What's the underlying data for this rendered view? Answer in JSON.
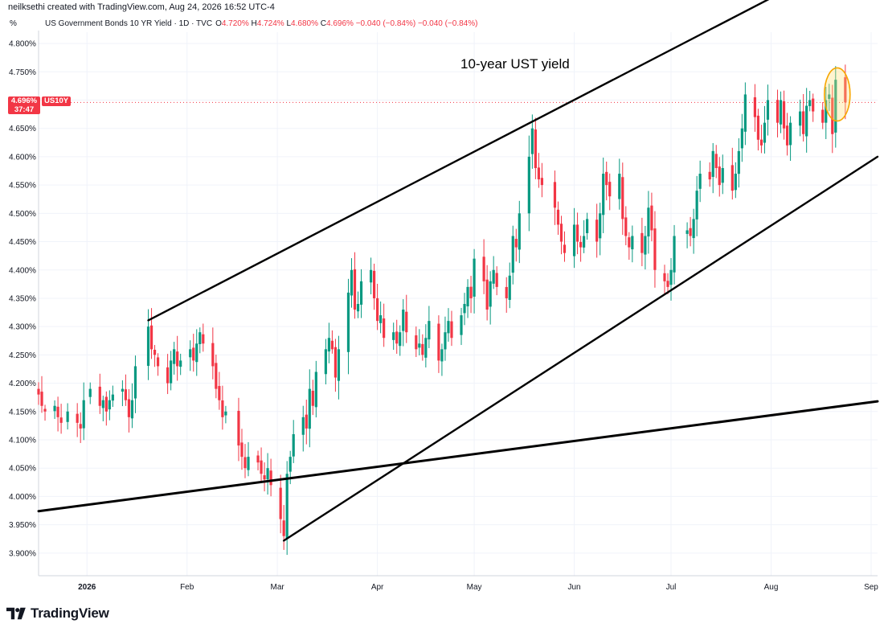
{
  "header": {
    "attribution": "neilksethi created with TradingView.com, Aug 24, 2026 16:52 UTC-4"
  },
  "legend": {
    "percent_toggle": "%",
    "title": "US Government Bonds 10 YR Yield · 1D · TVC",
    "o_label": "O",
    "o_value": "4.720%",
    "h_label": "H",
    "h_value": "4.724%",
    "l_label": "L",
    "l_value": "4.680%",
    "c_label": "C",
    "c_value": "4.696%",
    "change": "−0.040 (−0.84%)",
    "change2": "−0.040 (−0.84%)"
  },
  "price_badge": {
    "price": "4.696%",
    "countdown": "37:47",
    "symbol": "US10Y"
  },
  "annotation": "10-year UST yield",
  "footer": {
    "brand": "TradingView"
  },
  "colors": {
    "up": "#089981",
    "down": "#f23645",
    "grid": "#f0f3fa",
    "trendline": "#000000",
    "highlight": "#f7a600"
  },
  "chart_data": {
    "type": "candlestick",
    "ylim": [
      3.86,
      4.82
    ],
    "yticks": [
      {
        "value": 3.9,
        "label": "3.900%"
      },
      {
        "value": 3.95,
        "label": "3.950%"
      },
      {
        "value": 4.0,
        "label": "4.000%"
      },
      {
        "value": 4.05,
        "label": "4.050%"
      },
      {
        "value": 4.1,
        "label": "4.100%"
      },
      {
        "value": 4.15,
        "label": "4.150%"
      },
      {
        "value": 4.2,
        "label": "4.200%"
      },
      {
        "value": 4.25,
        "label": "4.250%"
      },
      {
        "value": 4.3,
        "label": "4.300%"
      },
      {
        "value": 4.35,
        "label": "4.350%"
      },
      {
        "value": 4.4,
        "label": "4.400%"
      },
      {
        "value": 4.45,
        "label": "4.450%"
      },
      {
        "value": 4.5,
        "label": "4.500%"
      },
      {
        "value": 4.55,
        "label": "4.550%"
      },
      {
        "value": 4.6,
        "label": "4.600%"
      },
      {
        "value": 4.65,
        "label": "4.650%"
      },
      {
        "value": 4.7,
        "label": "4.700%"
      },
      {
        "value": 4.75,
        "label": "4.750%"
      },
      {
        "value": 4.8,
        "label": "4.800%"
      }
    ],
    "xticks": [
      {
        "date": "2026-01-01",
        "label": "2026",
        "bold": true
      },
      {
        "date": "2026-02-01",
        "label": "Feb"
      },
      {
        "date": "2026-03-01",
        "label": "Mar"
      },
      {
        "date": "2026-04-01",
        "label": "Apr"
      },
      {
        "date": "2026-05-01",
        "label": "May"
      },
      {
        "date": "2026-06-01",
        "label": "Jun"
      },
      {
        "date": "2026-07-01",
        "label": "Jul"
      },
      {
        "date": "2026-08-01",
        "label": "Aug"
      },
      {
        "date": "2026-09-01",
        "label": "Sep"
      }
    ],
    "xrange": [
      "2025-12-17",
      "2026-09-03"
    ],
    "last_price": 4.696,
    "closes": [
      [
        "2025-12-17",
        4.18
      ],
      [
        "2025-12-18",
        4.16
      ],
      [
        "2025-12-19",
        4.15
      ],
      [
        "2025-12-22",
        4.16
      ],
      [
        "2025-12-23",
        4.14
      ],
      [
        "2025-12-24",
        4.13
      ],
      [
        "2025-12-26",
        4.15
      ],
      [
        "2025-12-29",
        4.13
      ],
      [
        "2025-12-30",
        4.12
      ],
      [
        "2025-12-31",
        4.17
      ],
      [
        "2026-01-02",
        4.19
      ],
      [
        "2026-01-05",
        4.16
      ],
      [
        "2026-01-06",
        4.17
      ],
      [
        "2026-01-07",
        4.15
      ],
      [
        "2026-01-08",
        4.17
      ],
      [
        "2026-01-09",
        4.18
      ],
      [
        "2026-01-12",
        4.19
      ],
      [
        "2026-01-13",
        4.17
      ],
      [
        "2026-01-14",
        4.14
      ],
      [
        "2026-01-15",
        4.17
      ],
      [
        "2026-01-16",
        4.23
      ],
      [
        "2026-01-20",
        4.3
      ],
      [
        "2026-01-21",
        4.26
      ],
      [
        "2026-01-22",
        4.25
      ],
      [
        "2026-01-23",
        4.23
      ],
      [
        "2026-01-26",
        4.2
      ],
      [
        "2026-01-27",
        4.24
      ],
      [
        "2026-01-28",
        4.26
      ],
      [
        "2026-01-29",
        4.23
      ],
      [
        "2026-01-30",
        4.24
      ],
      [
        "2026-02-02",
        4.26
      ],
      [
        "2026-02-03",
        4.24
      ],
      [
        "2026-02-04",
        4.27
      ],
      [
        "2026-02-05",
        4.29
      ],
      [
        "2026-02-06",
        4.27
      ],
      [
        "2026-02-09",
        4.23
      ],
      [
        "2026-02-10",
        4.19
      ],
      [
        "2026-02-11",
        4.17
      ],
      [
        "2026-02-12",
        4.14
      ],
      [
        "2026-02-13",
        4.15
      ],
      [
        "2026-02-17",
        4.09
      ],
      [
        "2026-02-18",
        4.07
      ],
      [
        "2026-02-19",
        4.05
      ],
      [
        "2026-02-20",
        4.07
      ],
      [
        "2026-02-23",
        4.06
      ],
      [
        "2026-02-24",
        4.04
      ],
      [
        "2026-02-25",
        4.03
      ],
      [
        "2026-02-26",
        4.05
      ],
      [
        "2026-02-27",
        4.02
      ],
      [
        "2026-03-02",
        3.96
      ],
      [
        "2026-03-03",
        3.93
      ],
      [
        "2026-03-04",
        4.04
      ],
      [
        "2026-03-05",
        4.07
      ],
      [
        "2026-03-06",
        4.11
      ],
      [
        "2026-03-09",
        4.14
      ],
      [
        "2026-03-10",
        4.12
      ],
      [
        "2026-03-11",
        4.19
      ],
      [
        "2026-03-12",
        4.16
      ],
      [
        "2026-03-13",
        4.22
      ],
      [
        "2026-03-16",
        4.26
      ],
      [
        "2026-03-17",
        4.28
      ],
      [
        "2026-03-18",
        4.26
      ],
      [
        "2026-03-19",
        4.21
      ],
      [
        "2026-03-20",
        4.26
      ],
      [
        "2026-03-23",
        4.36
      ],
      [
        "2026-03-24",
        4.4
      ],
      [
        "2026-03-25",
        4.33
      ],
      [
        "2026-03-26",
        4.34
      ],
      [
        "2026-03-27",
        4.38
      ],
      [
        "2026-03-30",
        4.4
      ],
      [
        "2026-03-31",
        4.35
      ],
      [
        "2026-04-01",
        4.31
      ],
      [
        "2026-04-02",
        4.32
      ],
      [
        "2026-04-03",
        4.28
      ],
      [
        "2026-04-06",
        4.29
      ],
      [
        "2026-04-07",
        4.27
      ],
      [
        "2026-04-08",
        4.29
      ],
      [
        "2026-04-09",
        4.33
      ],
      [
        "2026-04-10",
        4.29
      ],
      [
        "2026-04-13",
        4.26
      ],
      [
        "2026-04-14",
        4.27
      ],
      [
        "2026-04-15",
        4.25
      ],
      [
        "2026-04-16",
        4.28
      ],
      [
        "2026-04-17",
        4.31
      ],
      [
        "2026-04-20",
        4.24
      ],
      [
        "2026-04-21",
        4.26
      ],
      [
        "2026-04-22",
        4.29
      ],
      [
        "2026-04-23",
        4.31
      ],
      [
        "2026-04-24",
        4.28
      ],
      [
        "2026-04-27",
        4.32
      ],
      [
        "2026-04-28",
        4.34
      ],
      [
        "2026-04-29",
        4.37
      ],
      [
        "2026-04-30",
        4.35
      ],
      [
        "2026-05-01",
        4.42
      ],
      [
        "2026-05-04",
        4.38
      ],
      [
        "2026-05-05",
        4.33
      ],
      [
        "2026-05-06",
        4.38
      ],
      [
        "2026-05-07",
        4.4
      ],
      [
        "2026-05-08",
        4.37
      ],
      [
        "2026-05-11",
        4.35
      ],
      [
        "2026-05-12",
        4.39
      ],
      [
        "2026-05-13",
        4.46
      ],
      [
        "2026-05-14",
        4.44
      ],
      [
        "2026-05-15",
        4.5
      ],
      [
        "2026-05-18",
        4.6
      ],
      [
        "2026-05-19",
        4.65
      ],
      [
        "2026-05-20",
        4.58
      ],
      [
        "2026-05-21",
        4.56
      ],
      [
        "2026-05-22",
        4.55
      ],
      [
        "2026-05-26",
        4.51
      ],
      [
        "2026-05-27",
        4.48
      ],
      [
        "2026-05-28",
        4.45
      ],
      [
        "2026-05-29",
        4.43
      ],
      [
        "2026-06-01",
        4.48
      ],
      [
        "2026-06-02",
        4.45
      ],
      [
        "2026-06-03",
        4.44
      ],
      [
        "2026-06-04",
        4.46
      ],
      [
        "2026-06-05",
        4.49
      ],
      [
        "2026-06-08",
        4.45
      ],
      [
        "2026-06-09",
        4.5
      ],
      [
        "2026-06-10",
        4.57
      ],
      [
        "2026-06-11",
        4.55
      ],
      [
        "2026-06-12",
        4.53
      ],
      [
        "2026-06-15",
        4.57
      ],
      [
        "2026-06-16",
        4.49
      ],
      [
        "2026-06-17",
        4.46
      ],
      [
        "2026-06-18",
        4.44
      ],
      [
        "2026-06-19",
        4.46
      ],
      [
        "2026-06-22",
        4.43
      ],
      [
        "2026-06-23",
        4.46
      ],
      [
        "2026-06-24",
        4.51
      ],
      [
        "2026-06-25",
        4.47
      ],
      [
        "2026-06-26",
        4.4
      ],
      [
        "2026-06-29",
        4.38
      ],
      [
        "2026-06-30",
        4.37
      ],
      [
        "2026-07-01",
        4.4
      ],
      [
        "2026-07-02",
        4.46
      ],
      [
        "2026-07-06",
        4.47
      ],
      [
        "2026-07-07",
        4.46
      ],
      [
        "2026-07-08",
        4.49
      ],
      [
        "2026-07-09",
        4.54
      ],
      [
        "2026-07-10",
        4.57
      ],
      [
        "2026-07-13",
        4.56
      ],
      [
        "2026-07-14",
        4.61
      ],
      [
        "2026-07-15",
        4.58
      ],
      [
        "2026-07-16",
        4.55
      ],
      [
        "2026-07-17",
        4.58
      ],
      [
        "2026-07-20",
        4.54
      ],
      [
        "2026-07-21",
        4.57
      ],
      [
        "2026-07-22",
        4.61
      ],
      [
        "2026-07-23",
        4.65
      ],
      [
        "2026-07-24",
        4.71
      ],
      [
        "2026-07-27",
        4.67
      ],
      [
        "2026-07-28",
        4.63
      ],
      [
        "2026-07-29",
        4.62
      ],
      [
        "2026-07-30",
        4.66
      ],
      [
        "2026-07-31",
        4.7
      ],
      [
        "2026-08-03",
        4.66
      ],
      [
        "2026-08-04",
        4.7
      ],
      [
        "2026-08-05",
        4.65
      ],
      [
        "2026-08-06",
        4.62
      ],
      [
        "2026-08-07",
        4.66
      ],
      [
        "2026-08-10",
        4.68
      ],
      [
        "2026-08-11",
        4.64
      ],
      [
        "2026-08-12",
        4.69
      ],
      [
        "2026-08-13",
        4.7
      ],
      [
        "2026-08-14",
        4.68
      ],
      [
        "2026-08-17",
        4.66
      ],
      [
        "2026-08-18",
        4.7
      ],
      [
        "2026-08-19",
        4.71
      ],
      [
        "2026-08-20",
        4.64
      ],
      [
        "2026-08-21",
        4.736
      ],
      [
        "2026-08-24",
        4.696
      ]
    ],
    "trendlines": [
      {
        "from": [
          "2026-01-20",
          4.311
        ],
        "to": [
          "2026-08-28",
          4.96
        ]
      },
      {
        "from": [
          "2026-03-03",
          3.922
        ],
        "to": [
          "2026-09-03",
          4.6
        ]
      },
      {
        "from": [
          "2025-12-17",
          3.974
        ],
        "to": [
          "2026-09-03",
          4.168
        ]
      }
    ],
    "highlight": {
      "date": "2026-08-21",
      "value": 4.71
    }
  }
}
